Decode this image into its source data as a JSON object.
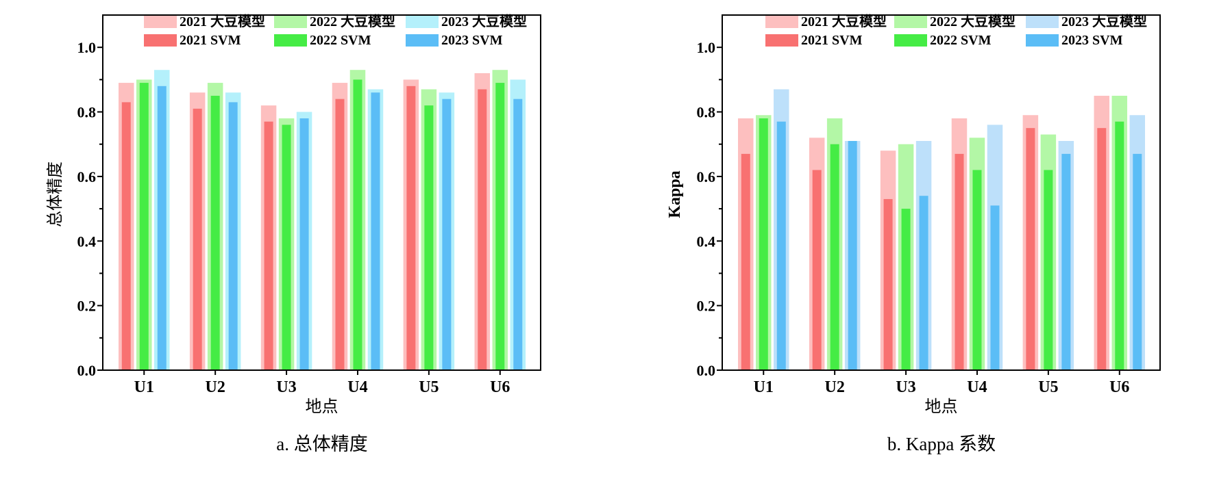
{
  "colors": {
    "c2021_light": "#fdbfbf",
    "c2021_dark": "#f87171",
    "c2022_light": "#b3f7a6",
    "c2022_dark": "#45ec45",
    "c2023_light_a": "#b4f0fb",
    "c2023_light_b": "#bde0fa",
    "c2023_dark": "#5bbdf6"
  },
  "chart_data": [
    {
      "id": "a",
      "type": "bar",
      "caption": "a. 总体精度",
      "xlabel": "地点",
      "ylabel": "总体精度",
      "ylim": [
        0,
        1.1
      ],
      "yticks": [
        "0.0",
        "0.2",
        "0.4",
        "0.6",
        "0.8",
        "1.0"
      ],
      "categories": [
        "U1",
        "U2",
        "U3",
        "U4",
        "U5",
        "U6"
      ],
      "legend": [
        "2021 大豆模型",
        "2022 大豆模型",
        "2023 大豆模型",
        "2021 SVM",
        "2022 SVM",
        "2023 SVM"
      ],
      "series": [
        {
          "name": "2021 大豆模型",
          "values": [
            0.89,
            0.86,
            0.82,
            0.89,
            0.9,
            0.92
          ]
        },
        {
          "name": "2021 SVM",
          "values": [
            0.83,
            0.81,
            0.77,
            0.84,
            0.88,
            0.87
          ]
        },
        {
          "name": "2022 大豆模型",
          "values": [
            0.9,
            0.89,
            0.78,
            0.93,
            0.87,
            0.93
          ]
        },
        {
          "name": "2022 SVM",
          "values": [
            0.89,
            0.85,
            0.76,
            0.9,
            0.82,
            0.89
          ]
        },
        {
          "name": "2023 大豆模型",
          "values": [
            0.93,
            0.86,
            0.8,
            0.87,
            0.86,
            0.9
          ]
        },
        {
          "name": "2023 SVM",
          "values": [
            0.88,
            0.83,
            0.78,
            0.86,
            0.84,
            0.84
          ]
        }
      ]
    },
    {
      "id": "b",
      "type": "bar",
      "caption": "b. Kappa 系数",
      "xlabel": "地点",
      "ylabel": "Kappa",
      "ylim": [
        0,
        1.1
      ],
      "yticks": [
        "0.0",
        "0.2",
        "0.4",
        "0.6",
        "0.8",
        "1.0"
      ],
      "categories": [
        "U1",
        "U2",
        "U3",
        "U4",
        "U5",
        "U6"
      ],
      "legend": [
        "2021 大豆模型",
        "2022 大豆模型",
        "2023 大豆模型",
        "2021 SVM",
        "2022 SVM",
        "2023 SVM"
      ],
      "series": [
        {
          "name": "2021 大豆模型",
          "values": [
            0.78,
            0.72,
            0.68,
            0.78,
            0.79,
            0.85
          ]
        },
        {
          "name": "2021 SVM",
          "values": [
            0.67,
            0.62,
            0.53,
            0.67,
            0.75,
            0.75
          ]
        },
        {
          "name": "2022 大豆模型",
          "values": [
            0.79,
            0.78,
            0.7,
            0.72,
            0.73,
            0.85
          ]
        },
        {
          "name": "2022 SVM",
          "values": [
            0.78,
            0.7,
            0.5,
            0.62,
            0.62,
            0.77
          ]
        },
        {
          "name": "2023 大豆模型",
          "values": [
            0.87,
            0.71,
            0.71,
            0.76,
            0.71,
            0.79
          ]
        },
        {
          "name": "2023 SVM",
          "values": [
            0.77,
            0.71,
            0.54,
            0.51,
            0.67,
            0.67
          ]
        }
      ]
    }
  ]
}
